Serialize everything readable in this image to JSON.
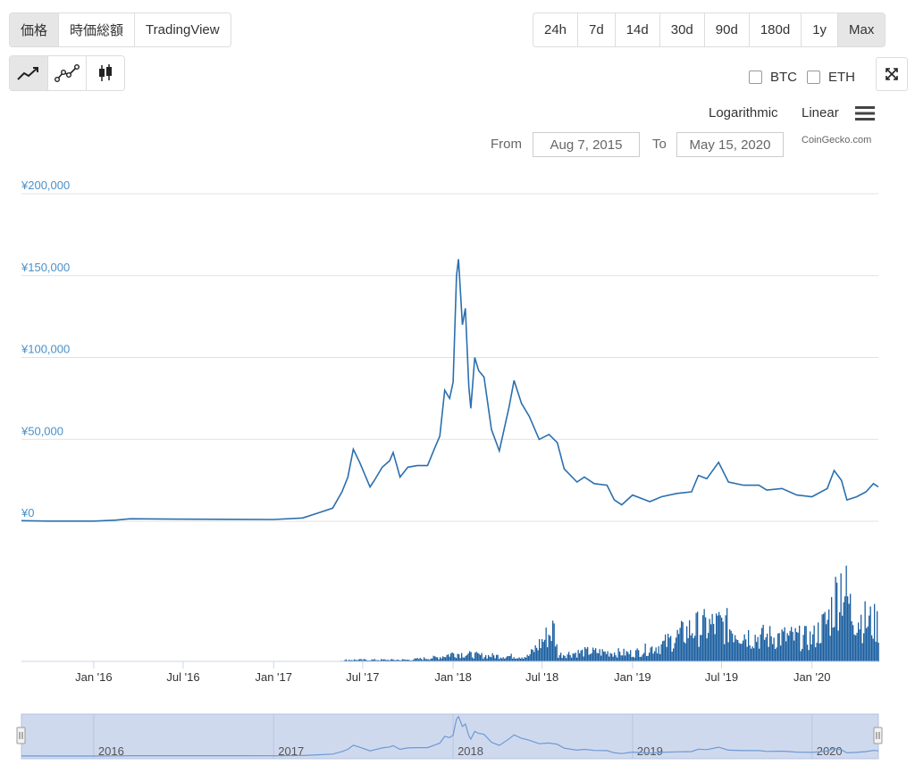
{
  "chart_type_tabs": [
    {
      "label": "価格",
      "active": true
    },
    {
      "label": "時価総額",
      "active": false
    },
    {
      "label": "TradingView",
      "active": false
    }
  ],
  "range_tabs": [
    {
      "label": "24h",
      "active": false
    },
    {
      "label": "7d",
      "active": false
    },
    {
      "label": "14d",
      "active": false
    },
    {
      "label": "30d",
      "active": false
    },
    {
      "label": "90d",
      "active": false
    },
    {
      "label": "180d",
      "active": false
    },
    {
      "label": "1y",
      "active": false
    },
    {
      "label": "Max",
      "active": true
    }
  ],
  "style_tabs": [
    {
      "icon": "line-chart-icon",
      "active": true
    },
    {
      "icon": "point-line-chart-icon",
      "active": false
    },
    {
      "icon": "candlestick-icon",
      "active": false
    }
  ],
  "compare": {
    "btc_label": "BTC",
    "eth_label": "ETH",
    "btc_checked": false,
    "eth_checked": false
  },
  "scale": {
    "log_label": "Logarithmic",
    "linear_label": "Linear",
    "selected": "Linear"
  },
  "date_range": {
    "from_label": "From",
    "from_value": "Aug 7, 2015",
    "to_label": "To",
    "to_value": "May 15, 2020"
  },
  "credit": "CoinGecko.com",
  "colors": {
    "line": "#2b6fae",
    "volume": "#1a5ea0",
    "axis_label": "#4a90c8",
    "navigator_fill": "#cfd9ee"
  },
  "chart_data": {
    "type": "line",
    "currency": "JPY",
    "y_ticks": [
      "¥0",
      "¥50,000",
      "¥100,000",
      "¥150,000",
      "¥200,000"
    ],
    "ylim": [
      0,
      200000
    ],
    "x_ticks": [
      "Jan '16",
      "Jul '16",
      "Jan '17",
      "Jul '17",
      "Jan '18",
      "Jul '18",
      "Jan '19",
      "Jul '19",
      "Jan '20"
    ],
    "x_range": [
      "2015-08-07",
      "2020-05-15"
    ],
    "grid": true,
    "series": [
      {
        "points": [
          [
            "2015-08-07",
            400
          ],
          [
            "2015-10-01",
            100
          ],
          [
            "2016-01-01",
            110
          ],
          [
            "2016-02-15",
            700
          ],
          [
            "2016-03-15",
            1500
          ],
          [
            "2016-06-15",
            1300
          ],
          [
            "2016-12-31",
            1100
          ],
          [
            "2017-03-01",
            2000
          ],
          [
            "2017-04-01",
            5000
          ],
          [
            "2017-05-01",
            8000
          ],
          [
            "2017-05-20",
            18000
          ],
          [
            "2017-06-01",
            27000
          ],
          [
            "2017-06-12",
            44000
          ],
          [
            "2017-06-25",
            36000
          ],
          [
            "2017-07-16",
            21000
          ],
          [
            "2017-07-25",
            25000
          ],
          [
            "2017-08-10",
            33000
          ],
          [
            "2017-08-25",
            37000
          ],
          [
            "2017-09-01",
            42000
          ],
          [
            "2017-09-15",
            27000
          ],
          [
            "2017-10-01",
            33000
          ],
          [
            "2017-10-20",
            34000
          ],
          [
            "2017-11-10",
            34000
          ],
          [
            "2017-11-25",
            45000
          ],
          [
            "2017-12-05",
            52000
          ],
          [
            "2017-12-15",
            80000
          ],
          [
            "2017-12-25",
            75000
          ],
          [
            "2018-01-01",
            85000
          ],
          [
            "2018-01-08",
            150000
          ],
          [
            "2018-01-12",
            160000
          ],
          [
            "2018-01-20",
            120000
          ],
          [
            "2018-01-26",
            130000
          ],
          [
            "2018-02-02",
            82000
          ],
          [
            "2018-02-06",
            69000
          ],
          [
            "2018-02-14",
            100000
          ],
          [
            "2018-02-22",
            92000
          ],
          [
            "2018-03-05",
            88000
          ],
          [
            "2018-03-20",
            56000
          ],
          [
            "2018-04-05",
            43000
          ],
          [
            "2018-04-25",
            70000
          ],
          [
            "2018-05-05",
            86000
          ],
          [
            "2018-05-20",
            72000
          ],
          [
            "2018-06-05",
            64000
          ],
          [
            "2018-06-25",
            50000
          ],
          [
            "2018-07-15",
            53000
          ],
          [
            "2018-08-01",
            48000
          ],
          [
            "2018-08-15",
            32000
          ],
          [
            "2018-09-10",
            24000
          ],
          [
            "2018-09-25",
            27000
          ],
          [
            "2018-10-15",
            23000
          ],
          [
            "2018-11-10",
            22000
          ],
          [
            "2018-11-25",
            13000
          ],
          [
            "2018-12-10",
            10000
          ],
          [
            "2019-01-01",
            16000
          ],
          [
            "2019-02-05",
            12000
          ],
          [
            "2019-03-01",
            15000
          ],
          [
            "2019-04-01",
            17000
          ],
          [
            "2019-05-01",
            18000
          ],
          [
            "2019-05-15",
            28000
          ],
          [
            "2019-06-01",
            26000
          ],
          [
            "2019-06-25",
            36000
          ],
          [
            "2019-07-15",
            24000
          ],
          [
            "2019-08-15",
            22000
          ],
          [
            "2019-09-15",
            22000
          ],
          [
            "2019-10-01",
            19000
          ],
          [
            "2019-11-01",
            20000
          ],
          [
            "2019-12-01",
            16000
          ],
          [
            "2020-01-01",
            15000
          ],
          [
            "2020-02-01",
            20000
          ],
          [
            "2020-02-15",
            31000
          ],
          [
            "2020-03-01",
            25000
          ],
          [
            "2020-03-12",
            13000
          ],
          [
            "2020-04-01",
            15000
          ],
          [
            "2020-04-20",
            18000
          ],
          [
            "2020-05-05",
            23000
          ],
          [
            "2020-05-15",
            21000
          ]
        ]
      }
    ],
    "volume": {
      "points": [
        [
          "2015-08-07",
          0
        ],
        [
          "2017-05-01",
          0
        ],
        [
          "2017-06-01",
          2
        ],
        [
          "2017-10-01",
          2
        ],
        [
          "2017-12-01",
          5
        ],
        [
          "2018-01-01",
          10
        ],
        [
          "2018-03-01",
          7
        ],
        [
          "2018-06-01",
          6
        ],
        [
          "2018-07-24",
          40
        ],
        [
          "2018-08-01",
          8
        ],
        [
          "2018-10-01",
          12
        ],
        [
          "2019-01-01",
          10
        ],
        [
          "2019-03-01",
          20
        ],
        [
          "2019-05-01",
          40
        ],
        [
          "2019-07-01",
          45
        ],
        [
          "2019-09-01",
          30
        ],
        [
          "2019-11-01",
          30
        ],
        [
          "2020-01-01",
          28
        ],
        [
          "2020-02-01",
          50
        ],
        [
          "2020-03-01",
          100
        ],
        [
          "2020-03-20",
          60
        ],
        [
          "2020-04-15",
          50
        ],
        [
          "2020-05-15",
          45
        ]
      ]
    },
    "navigator_labels": [
      "2016",
      "2017",
      "2018",
      "2019",
      "2020"
    ]
  }
}
